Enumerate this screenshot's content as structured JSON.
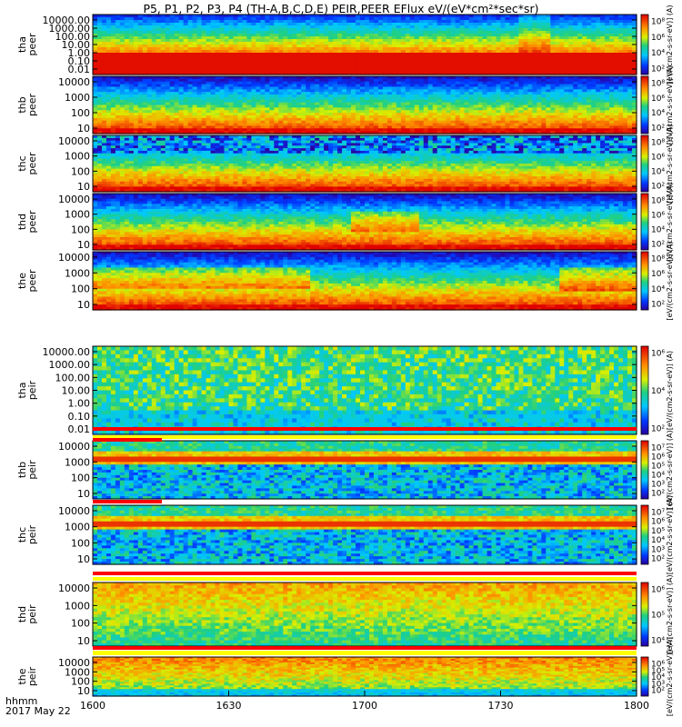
{
  "title": "P5, P1, P2, P3, P4 (TH-A,B,C,D,E) PEIR,PEER EFlux eV/(eV*cm²*sec*sr)",
  "time_axis": {
    "ticks": [
      "1600",
      "1630",
      "1700",
      "1730",
      "1800"
    ],
    "corner_label": "hhmm",
    "date_label": "2017 May 22"
  },
  "colorbar_label": "[eV/(cm2-s-sr-eV)] (A)",
  "chart_data": {
    "type": "heatmap",
    "x_range": [
      "16:00",
      "18:00"
    ],
    "panels": [
      {
        "ylabel": [
          "tha",
          "peer"
        ],
        "ytick_labels": [
          "10000.00",
          "1000.00",
          "100.00",
          "10.00",
          "1.00",
          "0.10",
          "0.01"
        ],
        "yrange": [
          0.01,
          30000
        ],
        "log_y": true,
        "species": "electron",
        "probe": "tha",
        "cbar_ticks": [
          "10⁸",
          "10⁶",
          "10⁴",
          "10²"
        ]
      },
      {
        "ylabel": [
          "thb",
          "peer"
        ],
        "ytick_labels": [
          "10000",
          "1000",
          "100",
          "10"
        ],
        "yrange": [
          10,
          30000
        ],
        "log_y": true,
        "species": "electron",
        "probe": "thb",
        "cbar_ticks": [
          "10⁸",
          "10⁶",
          "10⁴",
          "10²"
        ]
      },
      {
        "ylabel": [
          "thc",
          "peer"
        ],
        "ytick_labels": [
          "10000",
          "1000",
          "100",
          "10"
        ],
        "yrange": [
          10,
          30000
        ],
        "log_y": true,
        "species": "electron",
        "probe": "thc",
        "cbar_ticks": [
          "10⁸",
          "10⁶",
          "10⁴",
          "10²"
        ]
      },
      {
        "ylabel": [
          "thd",
          "peer"
        ],
        "ytick_labels": [
          "10000",
          "1000",
          "100",
          "10"
        ],
        "yrange": [
          10,
          30000
        ],
        "log_y": true,
        "species": "electron",
        "probe": "thd",
        "cbar_ticks": [
          "10⁸",
          "10⁶",
          "10⁴",
          "10²"
        ]
      },
      {
        "ylabel": [
          "the",
          "peer"
        ],
        "ytick_labels": [
          "10000",
          "1000",
          "100",
          "10"
        ],
        "yrange": [
          10,
          30000
        ],
        "log_y": true,
        "species": "electron",
        "probe": "the",
        "cbar_ticks": [
          "10⁸",
          "10⁶",
          "10⁴",
          "10²"
        ]
      },
      {
        "ylabel": [
          "tha",
          "peir"
        ],
        "ytick_labels": [
          "10000.00",
          "1000.00",
          "100.00",
          "10.00",
          "1.00",
          "0.10",
          "0.01"
        ],
        "yrange": [
          0.01,
          30000
        ],
        "log_y": true,
        "species": "ion",
        "probe": "tha",
        "cbar_ticks": [
          "10⁶",
          "10⁴",
          "10²"
        ]
      },
      {
        "ylabel": [
          "thb",
          "peir"
        ],
        "ytick_labels": [
          "10000",
          "1000",
          "100",
          "10"
        ],
        "yrange": [
          10,
          30000
        ],
        "log_y": true,
        "species": "ion",
        "probe": "thb",
        "cbar_ticks": [
          "10⁷",
          "10⁶",
          "10⁵",
          "10⁴",
          "10³",
          "10²"
        ]
      },
      {
        "ylabel": [
          "thc",
          "peir"
        ],
        "ytick_labels": [
          "10000",
          "1000",
          "100",
          "10"
        ],
        "yrange": [
          10,
          30000
        ],
        "log_y": true,
        "species": "ion",
        "probe": "thc",
        "cbar_ticks": [
          "10⁷",
          "10⁶",
          "10⁵",
          "10⁴",
          "10³",
          "10²"
        ]
      },
      {
        "ylabel": [
          "thd",
          "peir"
        ],
        "ytick_labels": [
          "10000",
          "1000",
          "100",
          "10"
        ],
        "yrange": [
          10,
          30000
        ],
        "log_y": true,
        "species": "ion",
        "probe": "thd",
        "cbar_ticks": [
          "10⁶",
          "10⁵",
          "10⁴"
        ]
      },
      {
        "ylabel": [
          "the",
          "peir"
        ],
        "ytick_labels": [
          "10000",
          "1000",
          "100",
          "10"
        ],
        "yrange": [
          10,
          30000
        ],
        "log_y": true,
        "species": "ion",
        "probe": "the",
        "cbar_ticks": [
          "10⁶",
          "10⁵",
          "10⁴",
          "10³",
          "10²"
        ]
      }
    ]
  }
}
